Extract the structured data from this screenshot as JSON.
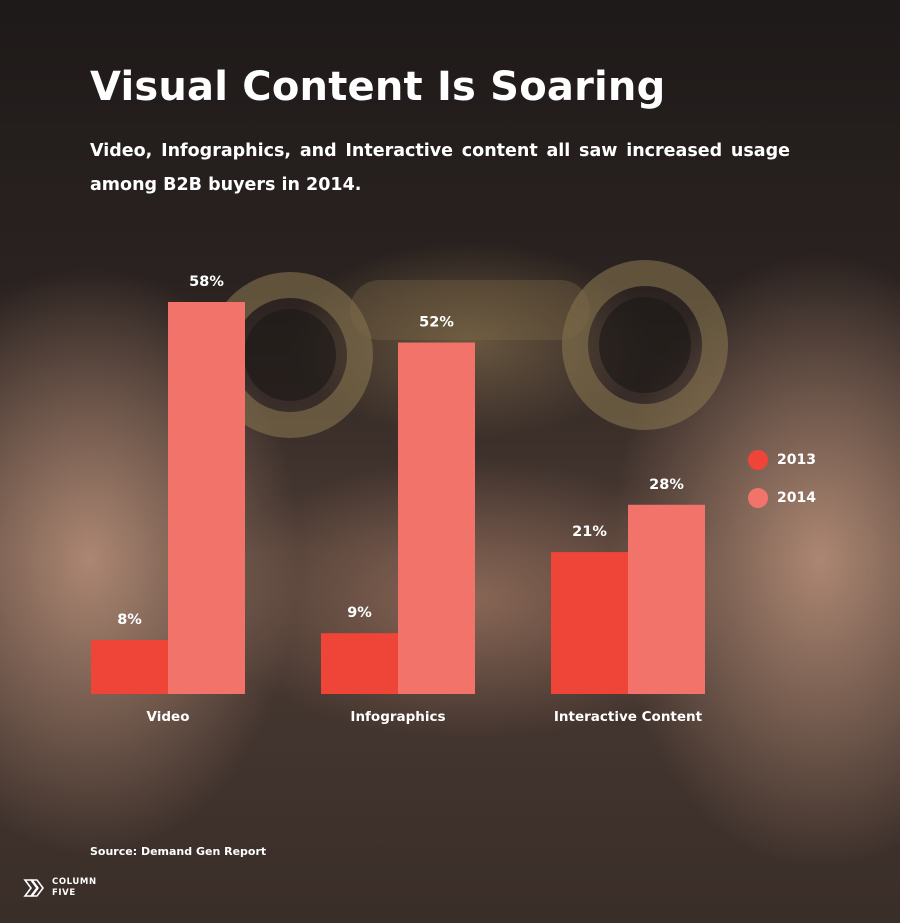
{
  "header": {
    "title": "Visual Content Is Soaring",
    "subtitle": "Video, Infographics, and Interactive content all saw increased usage among B2B buyers in 2014."
  },
  "chart_data": {
    "type": "bar",
    "categories": [
      "Video",
      "Infographics",
      "Interactive Content"
    ],
    "series": [
      {
        "name": "2013",
        "values": [
          8,
          9,
          21
        ],
        "labels": [
          "8%",
          "9%",
          "21%"
        ],
        "color": "#ef4438"
      },
      {
        "name": "2014",
        "values": [
          58,
          52,
          28
        ],
        "labels": [
          "58%",
          "52%",
          "28%"
        ],
        "color": "#f2736a"
      }
    ],
    "ylim": [
      0,
      58
    ],
    "grid": false,
    "legend_position": "right",
    "title": "Visual Content Is Soaring",
    "xlabel": "",
    "ylabel": ""
  },
  "footer": {
    "source": "Source: Demand Gen Report",
    "logo_line1": "COLUMN",
    "logo_line2": "FIVE"
  }
}
